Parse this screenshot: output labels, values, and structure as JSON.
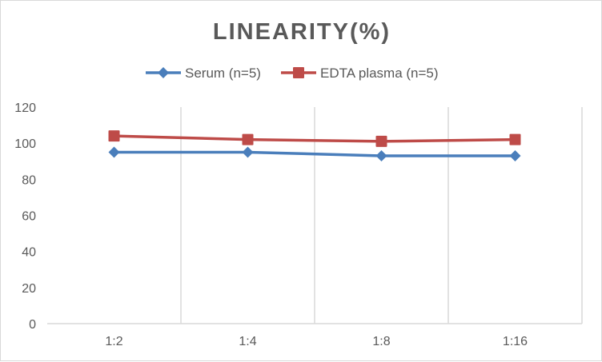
{
  "chart_data": {
    "type": "line",
    "title": "LINEARITY(%)",
    "categories": [
      "1:2",
      "1:4",
      "1:8",
      "1:16"
    ],
    "series": [
      {
        "name": "Serum (n=5)",
        "values": [
          95,
          95,
          93,
          93
        ],
        "color": "#4a7ebb",
        "marker": "diamond"
      },
      {
        "name": "EDTA plasma (n=5)",
        "values": [
          104,
          102,
          101,
          102
        ],
        "color": "#be4b48",
        "marker": "square"
      }
    ],
    "ylim": [
      0,
      120
    ],
    "yticks": [
      0,
      20,
      40,
      60,
      80,
      100,
      120
    ],
    "grid": "vertical",
    "legend": "top",
    "xlabel": "",
    "ylabel": ""
  }
}
